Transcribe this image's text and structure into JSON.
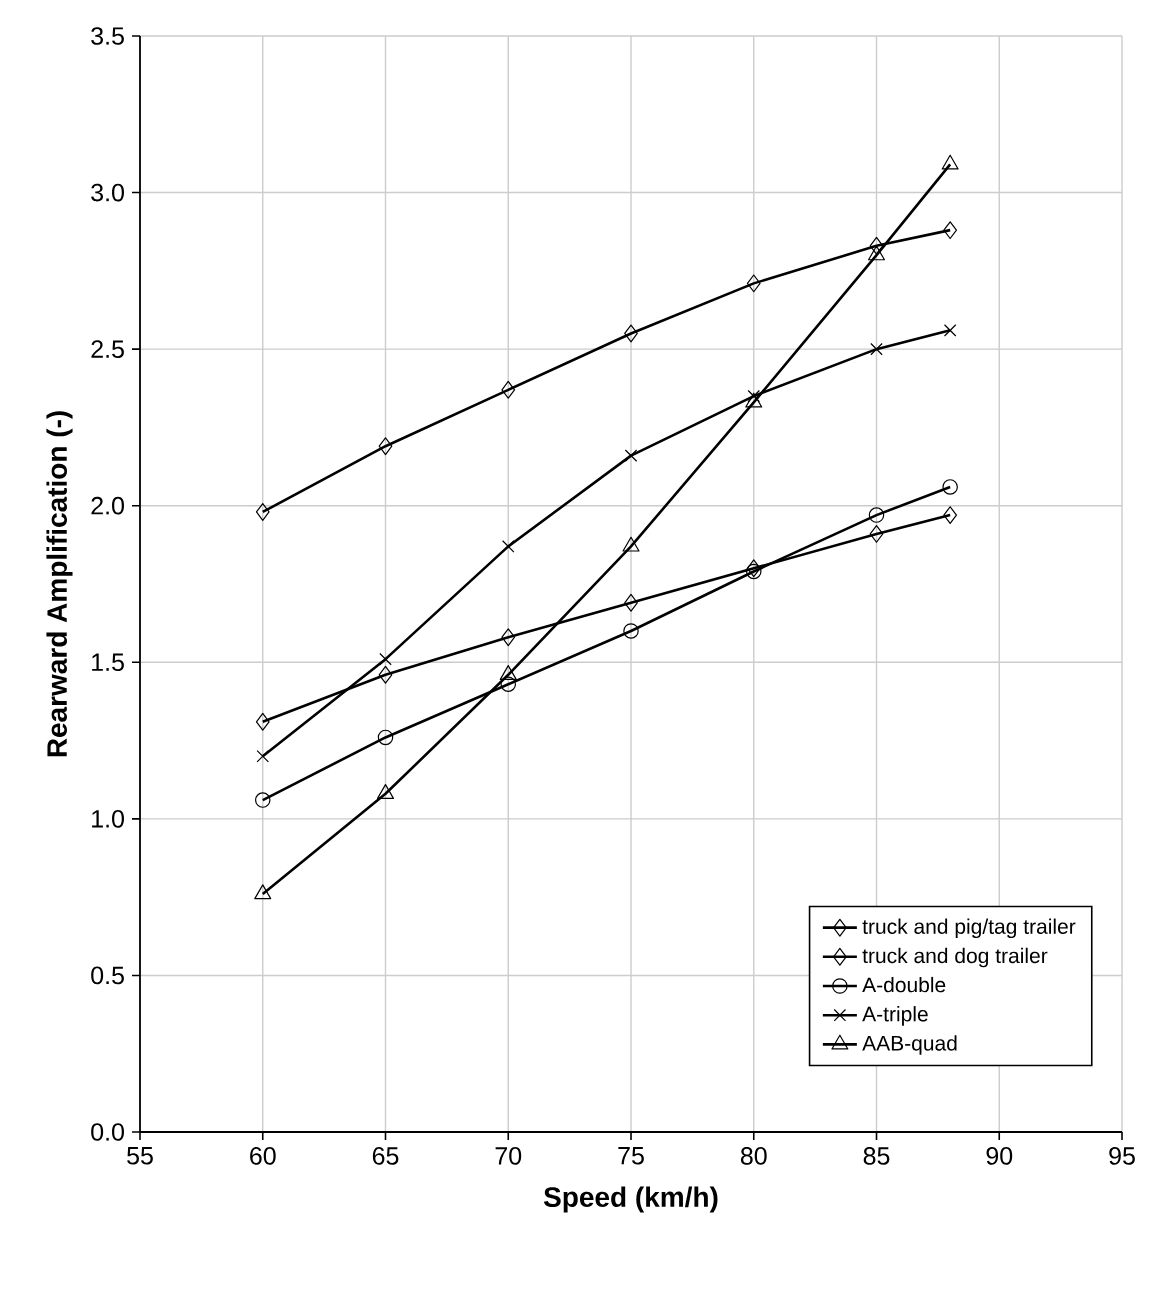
{
  "chart_data": {
    "type": "line",
    "xlabel": "Speed (km/h)",
    "ylabel": "Rearward Amplification (-)",
    "x": [
      60,
      65,
      70,
      75,
      80,
      85,
      88
    ],
    "series": [
      {
        "name": "truck and pig/tag trailer",
        "color": "#000000",
        "marker": "diamond",
        "values": [
          1.31,
          1.46,
          1.58,
          1.69,
          1.8,
          1.91,
          1.97
        ]
      },
      {
        "name": "truck and dog trailer",
        "color": "#000000",
        "marker": "diamond",
        "values": [
          1.98,
          2.19,
          2.37,
          2.55,
          2.71,
          2.83,
          2.88
        ]
      },
      {
        "name": "A-double",
        "color": "#000000",
        "marker": "circle",
        "values": [
          1.06,
          1.26,
          1.43,
          1.6,
          1.79,
          1.97,
          2.06
        ]
      },
      {
        "name": "A-triple",
        "color": "#000000",
        "marker": "cross",
        "values": [
          1.2,
          1.51,
          1.87,
          2.16,
          2.35,
          2.5,
          2.56
        ]
      },
      {
        "name": "AAB-quad",
        "color": "#000000",
        "marker": "triangle",
        "values": [
          0.76,
          1.08,
          1.46,
          1.87,
          2.33,
          2.8,
          3.09
        ]
      }
    ],
    "xlim": [
      55,
      95
    ],
    "xticks": [
      55,
      60,
      65,
      70,
      75,
      80,
      85,
      90,
      95
    ],
    "ylim": [
      0,
      3.5
    ],
    "yticks": [
      {
        "value": 0,
        "label": "0.0"
      },
      {
        "value": 0.5,
        "label": "0.5"
      },
      {
        "value": 1,
        "label": "1.0"
      },
      {
        "value": 1.5,
        "label": "1.5"
      },
      {
        "value": 2,
        "label": "2.0"
      },
      {
        "value": 2.5,
        "label": "2.5"
      },
      {
        "value": 3,
        "label": "3.0"
      },
      {
        "value": 3.5,
        "label": "3.5"
      }
    ],
    "grid": true,
    "legend": "bottom right",
    "line_style": "solid"
  }
}
